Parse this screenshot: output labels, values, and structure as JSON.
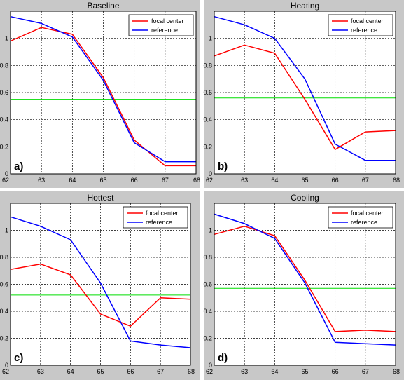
{
  "chart_data": [
    {
      "type": "line",
      "title": "Baseline",
      "panel_label": "a)",
      "x": [
        62,
        63,
        64,
        65,
        66,
        67,
        68
      ],
      "xlim": [
        62,
        68
      ],
      "ylim": [
        0,
        1.2
      ],
      "xticks": [
        "62",
        "63",
        "64",
        "65",
        "66",
        "67",
        "68"
      ],
      "yticks": [
        "0",
        "0.2",
        "0.4",
        "0.6",
        "0.8",
        "1"
      ],
      "grid": true,
      "legend_position": "top-right",
      "series": [
        {
          "name": "focal center",
          "color": "#ff0000",
          "values": [
            0.98,
            1.08,
            1.03,
            0.71,
            0.25,
            0.06,
            0.06
          ]
        },
        {
          "name": "reference",
          "color": "#0000ff",
          "values": [
            1.16,
            1.11,
            1.01,
            0.69,
            0.23,
            0.09,
            0.09
          ]
        }
      ],
      "threshold": {
        "color": "#00dd00",
        "value": 0.55
      }
    },
    {
      "type": "line",
      "title": "Heating",
      "panel_label": "b)",
      "x": [
        62,
        63,
        64,
        65,
        66,
        67,
        68
      ],
      "xlim": [
        62,
        68
      ],
      "ylim": [
        0,
        1.2
      ],
      "xticks": [
        "62",
        "63",
        "64",
        "65",
        "66",
        "67",
        "68"
      ],
      "yticks": [
        "0",
        "0.2",
        "0.4",
        "0.6",
        "0.8",
        "1"
      ],
      "grid": true,
      "legend_position": "top-right",
      "series": [
        {
          "name": "focal center",
          "color": "#ff0000",
          "values": [
            0.87,
            0.95,
            0.89,
            0.55,
            0.18,
            0.31,
            0.32
          ]
        },
        {
          "name": "reference",
          "color": "#0000ff",
          "values": [
            1.16,
            1.1,
            1.0,
            0.7,
            0.22,
            0.1,
            0.1
          ]
        }
      ],
      "threshold": {
        "color": "#00dd00",
        "value": 0.56
      }
    },
    {
      "type": "line",
      "title": "Hottest",
      "panel_label": "c)",
      "x": [
        62,
        63,
        64,
        65,
        66,
        67,
        68
      ],
      "xlim": [
        62,
        68
      ],
      "ylim": [
        0,
        1.2
      ],
      "xticks": [
        "62",
        "63",
        "64",
        "65",
        "66",
        "67",
        "68"
      ],
      "yticks": [
        "0",
        "0.2",
        "0.4",
        "0.6",
        "0.8",
        "1"
      ],
      "grid": true,
      "legend_position": "top-right",
      "series": [
        {
          "name": "focal center",
          "color": "#ff0000",
          "values": [
            0.71,
            0.75,
            0.67,
            0.38,
            0.29,
            0.5,
            0.49
          ]
        },
        {
          "name": "reference",
          "color": "#0000ff",
          "values": [
            1.1,
            1.03,
            0.93,
            0.61,
            0.18,
            0.15,
            0.13
          ]
        }
      ],
      "threshold": {
        "color": "#00dd00",
        "value": 0.52
      }
    },
    {
      "type": "line",
      "title": "Cooling",
      "panel_label": "d)",
      "x": [
        62,
        63,
        64,
        65,
        66,
        67,
        68
      ],
      "xlim": [
        62,
        68
      ],
      "ylim": [
        0,
        1.2
      ],
      "xticks": [
        "62",
        "63",
        "64",
        "65",
        "66",
        "67",
        "68"
      ],
      "yticks": [
        "0",
        "0.2",
        "0.4",
        "0.6",
        "0.8",
        "1"
      ],
      "grid": true,
      "legend_position": "top-right",
      "series": [
        {
          "name": "focal center",
          "color": "#ff0000",
          "values": [
            0.97,
            1.03,
            0.96,
            0.63,
            0.25,
            0.26,
            0.25
          ]
        },
        {
          "name": "reference",
          "color": "#0000ff",
          "values": [
            1.12,
            1.05,
            0.94,
            0.61,
            0.17,
            0.16,
            0.15
          ]
        }
      ],
      "threshold": {
        "color": "#00dd00",
        "value": 0.57
      }
    }
  ]
}
